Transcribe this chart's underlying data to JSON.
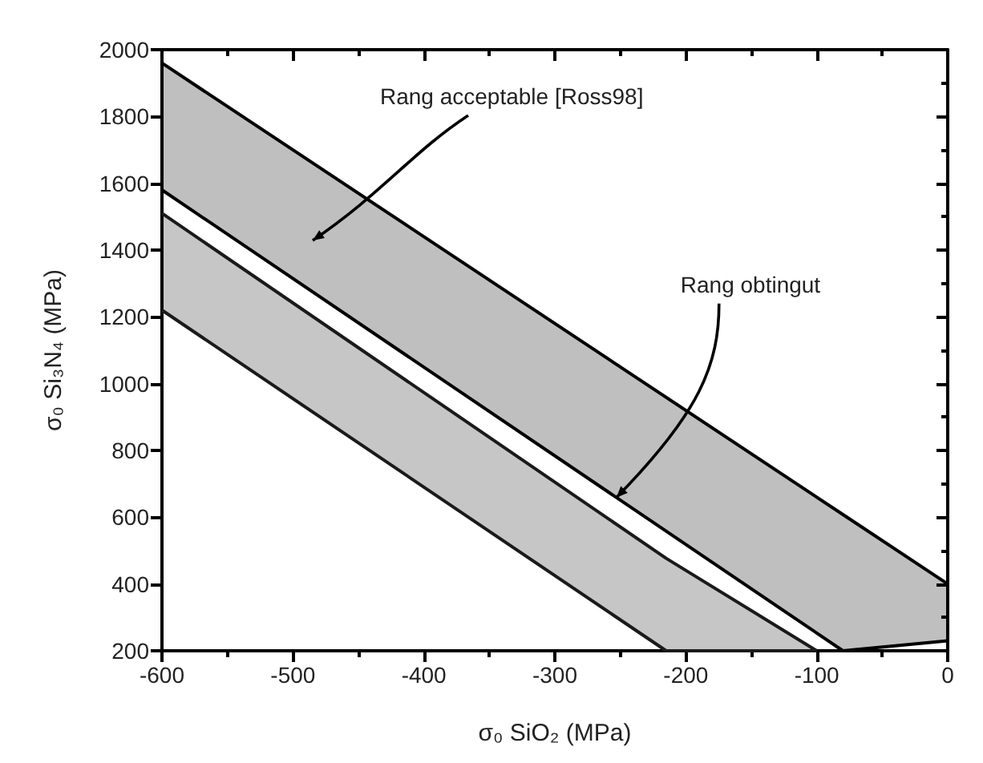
{
  "chart_data": {
    "type": "line",
    "xlabel": "σ₀ SiO₂ (MPa)",
    "ylabel": "σ₀ Si₃N₄ (MPa)",
    "xlim": [
      -600,
      0
    ],
    "ylim": [
      200,
      2000
    ],
    "xticks": [
      -600,
      -500,
      -400,
      -300,
      -200,
      -100,
      0
    ],
    "yticks": [
      200,
      400,
      600,
      800,
      1000,
      1200,
      1400,
      1600,
      1800,
      2000
    ],
    "grid": false,
    "series": [
      {
        "color": "#000000",
        "x": [
          -600,
          -80,
          0
        ],
        "values": [
          1960,
          608,
          400
        ]
      },
      {
        "color": "#000000",
        "x": [
          -600,
          -80,
          0
        ],
        "values": [
          1580,
          200,
          230
        ],
        "lower": [
          1580,
          200,
          230
        ],
        "upper": [
          1960,
          608,
          400
        ]
      },
      {
        "color": "#1a1a1a",
        "x": [
          -600,
          -215,
          -100
        ],
        "values": [
          1510,
          477,
          200
        ]
      },
      {
        "color": "#1a1a1a",
        "x": [
          -600,
          -215,
          -100
        ],
        "values": [
          1220,
          200,
          200
        ],
        "lower": [
          1220,
          200,
          200
        ],
        "upper": [
          1510,
          477,
          200
        ]
      }
    ],
    "annotations": [
      "Rang acceptable [Ross98]",
      {
        "text": "Rang obtingut",
        "x": -253,
        "y": 659
      }
    ]
  }
}
